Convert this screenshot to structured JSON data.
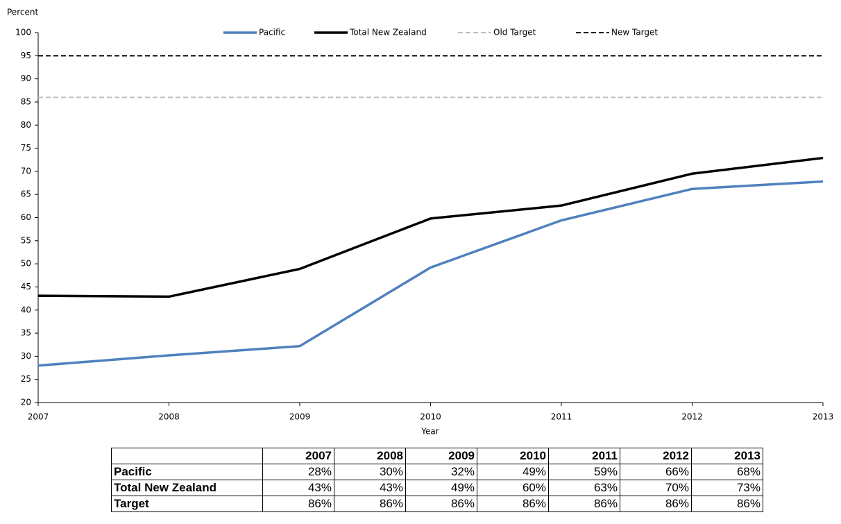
{
  "chart_data": {
    "type": "line",
    "y_label": "Percent",
    "x_label": "Year",
    "x": [
      2007,
      2008,
      2009,
      2010,
      2011,
      2012,
      2013
    ],
    "xlim": [
      2007,
      2013
    ],
    "xticks": [
      2007,
      2008,
      2009,
      2010,
      2011,
      2012,
      2013
    ],
    "ylim": [
      20,
      100
    ],
    "yticks": [
      20,
      25,
      30,
      35,
      40,
      45,
      50,
      55,
      60,
      65,
      70,
      75,
      80,
      85,
      90,
      95,
      100
    ],
    "legend": "top",
    "series": [
      {
        "name": "Pacific",
        "color": "#4f81bd",
        "style": "solid",
        "values": [
          28,
          30.2,
          32.2,
          49.2,
          59.4,
          66.2,
          67.8
        ]
      },
      {
        "name": "Total New Zealand",
        "color": "#000000",
        "style": "solid",
        "values": [
          43.1,
          42.9,
          48.9,
          59.8,
          62.6,
          69.5,
          72.9
        ]
      },
      {
        "name": "Old Target",
        "color": "#bfbfbf",
        "style": "dashed",
        "values": [
          86,
          86,
          86,
          86,
          86,
          86,
          86
        ]
      },
      {
        "name": "New Target",
        "color": "#000000",
        "style": "dashed",
        "values": [
          95,
          95,
          95,
          95,
          95,
          95,
          95
        ]
      }
    ]
  },
  "table": {
    "columns": [
      "2007",
      "2008",
      "2009",
      "2010",
      "2011",
      "2012",
      "2013"
    ],
    "rows": [
      {
        "label": "Pacific",
        "cells": [
          "28%",
          "30%",
          "32%",
          "49%",
          "59%",
          "66%",
          "68%"
        ]
      },
      {
        "label": "Total New Zealand",
        "cells": [
          "43%",
          "43%",
          "49%",
          "60%",
          "63%",
          "70%",
          "73%"
        ]
      },
      {
        "label": "Target",
        "cells": [
          "86%",
          "86%",
          "86%",
          "86%",
          "86%",
          "86%",
          "86%"
        ]
      }
    ]
  }
}
